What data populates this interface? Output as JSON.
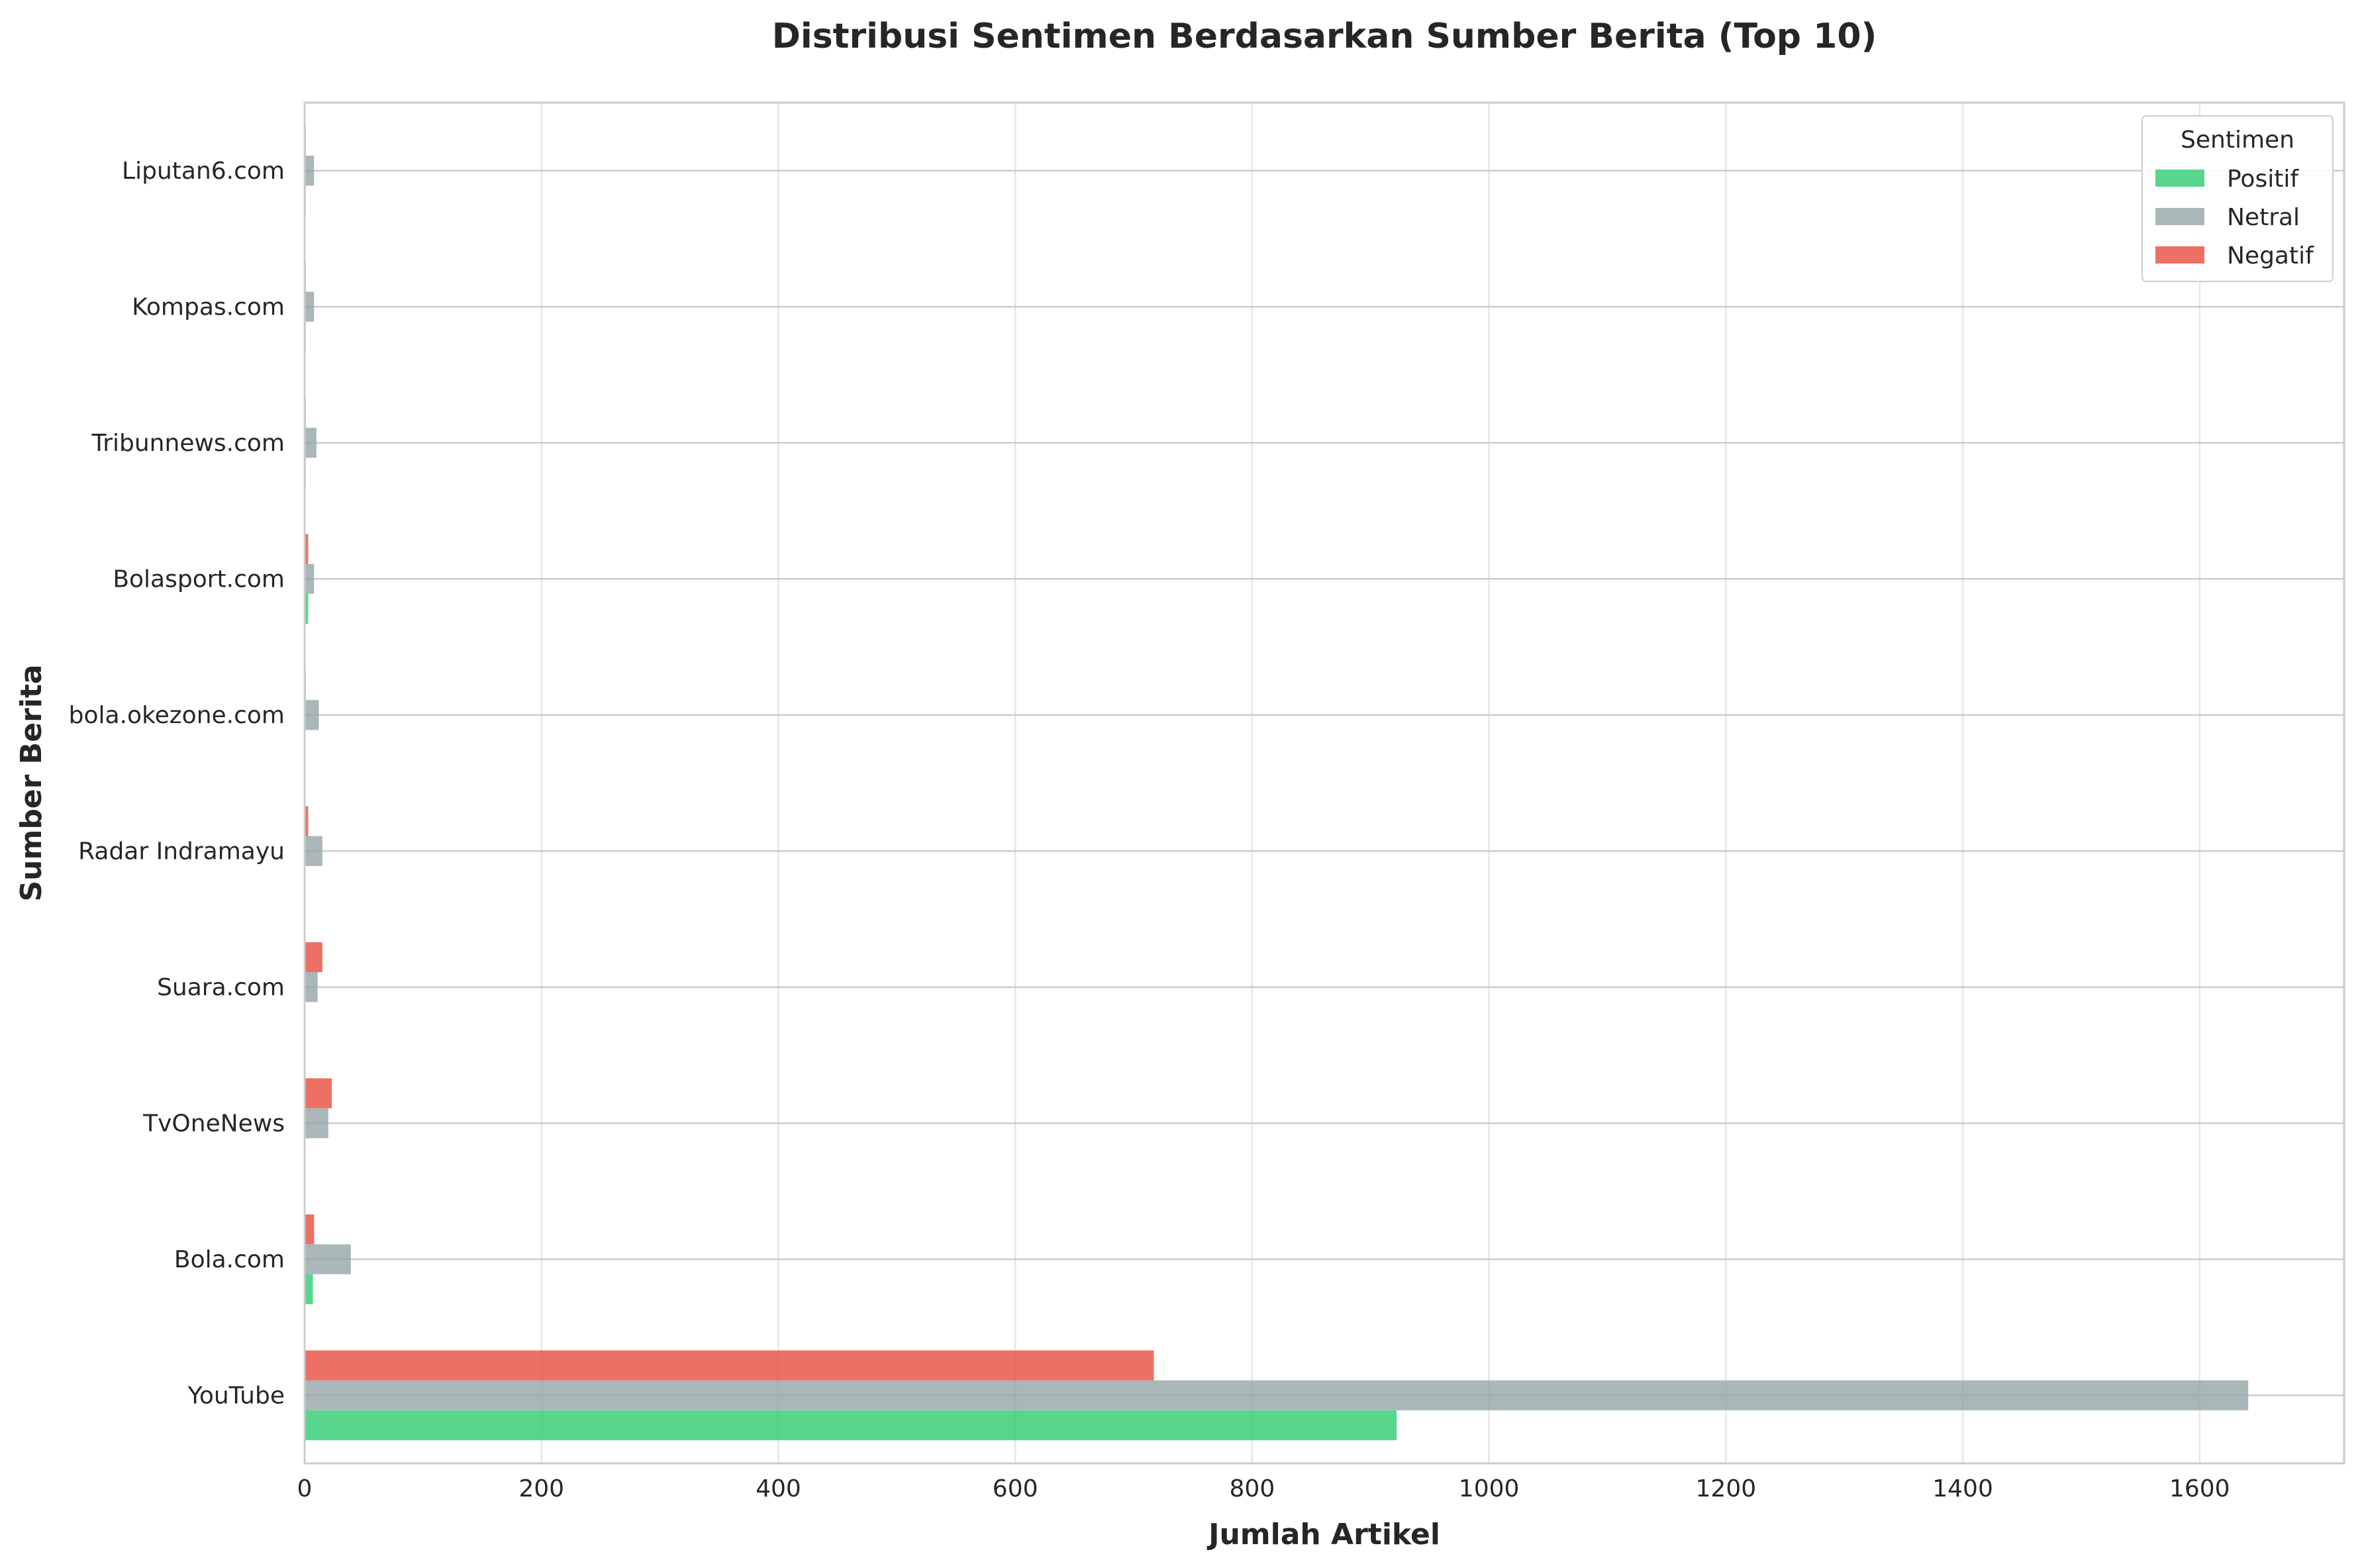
{
  "chart_data": {
    "type": "bar",
    "orientation": "horizontal",
    "title": "Distribusi Sentimen Berdasarkan Sumber Berita (Top 10)",
    "xlabel": "Jumlah Artikel",
    "ylabel": "Sumber Berita",
    "xlim": [
      0,
      1722
    ],
    "xticks": [
      0,
      200,
      400,
      600,
      800,
      1000,
      1200,
      1400,
      1600
    ],
    "grid": true,
    "legend_title": "Sentimen",
    "legend_position": "top-right",
    "categories": [
      "YouTube",
      "Bola.com",
      "TvOneNews",
      "Suara.com",
      "Radar Indramayu",
      "bola.okezone.com",
      "Bolasport.com",
      "Tribunnews.com",
      "Kompas.com",
      "Liputan6.com"
    ],
    "series": [
      {
        "name": "Positif",
        "color": "#2ecc71",
        "values": [
          922,
          7,
          0,
          0,
          0,
          0,
          3,
          1,
          1,
          1
        ]
      },
      {
        "name": "Netral",
        "color": "#95a5a6",
        "values": [
          1641,
          39,
          20,
          11,
          15,
          12,
          8,
          10,
          8,
          8
        ]
      },
      {
        "name": "Negatif",
        "color": "#e74c3c",
        "values": [
          717,
          8,
          23,
          15,
          3,
          1,
          3,
          1,
          1,
          1
        ]
      }
    ]
  }
}
